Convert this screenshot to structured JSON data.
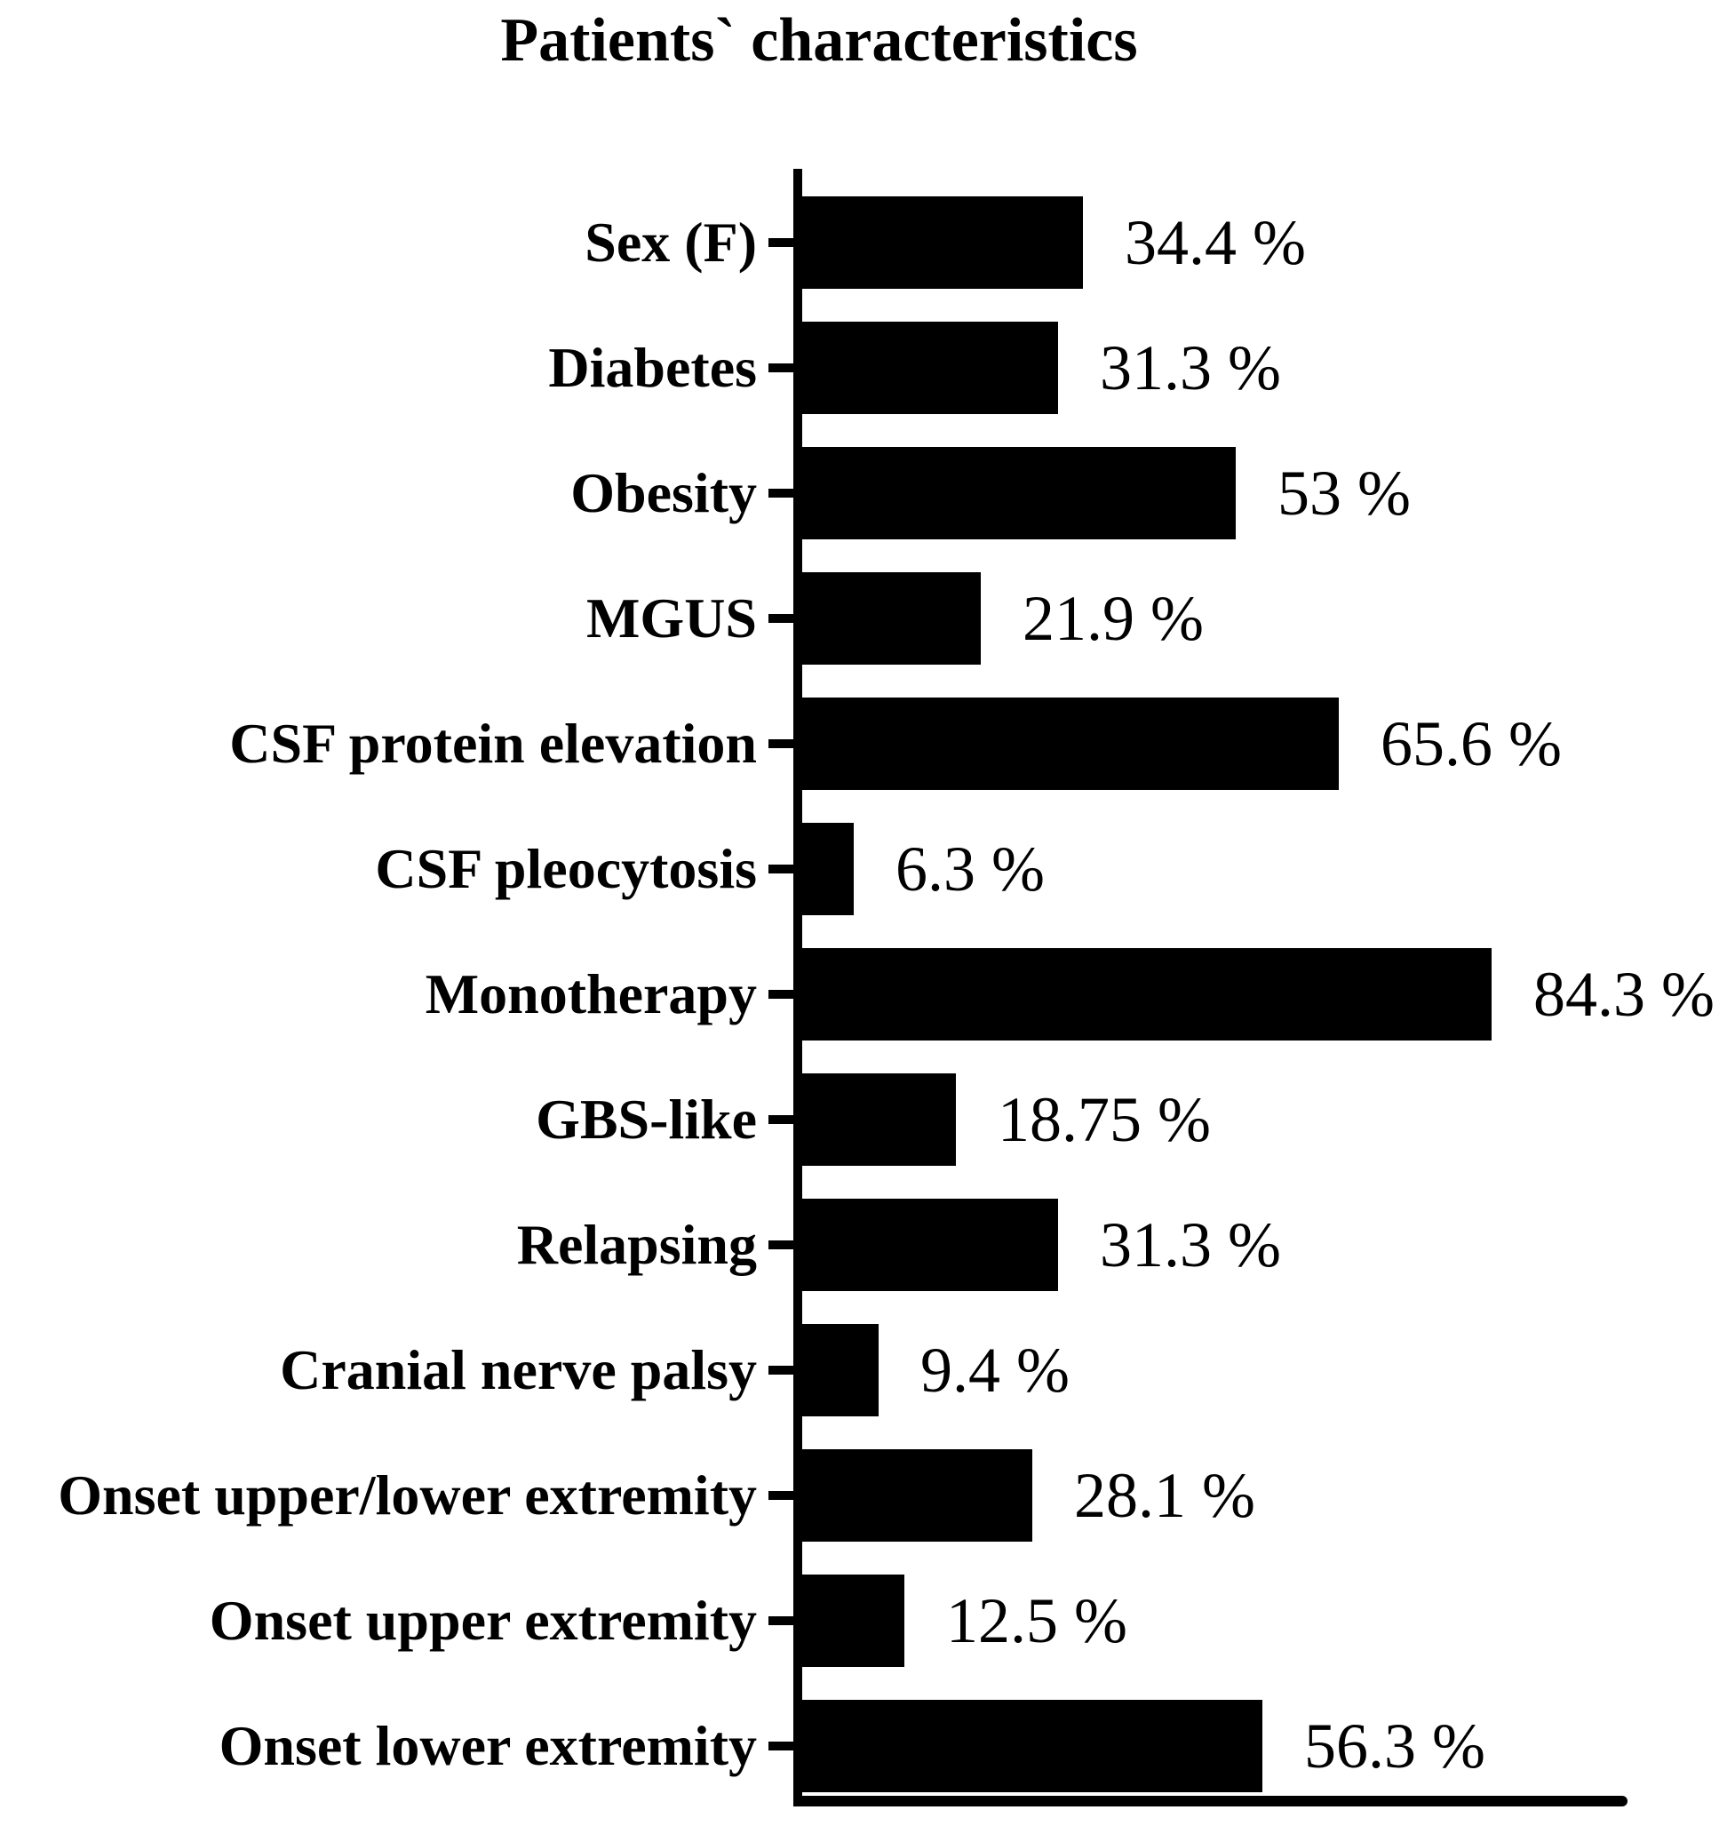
{
  "chart_data": {
    "type": "bar",
    "orientation": "horizontal",
    "title": "Patients` characteristics",
    "categories": [
      "Sex (F)",
      "Diabetes",
      "Obesity",
      "MGUS",
      "CSF protein elevation",
      "CSF pleocytosis",
      "Monotherapy",
      "GBS-like",
      "Relapsing",
      "Cranial nerve palsy",
      "Onset upper/lower extremity",
      "Onset upper extremity",
      "Onset lower extremity"
    ],
    "values": [
      34.4,
      31.3,
      53,
      21.9,
      65.6,
      6.3,
      84.3,
      18.75,
      31.3,
      9.4,
      28.1,
      12.5,
      56.3
    ],
    "value_labels": [
      "34.4 %",
      "31.3 %",
      "53 %",
      "21.9 %",
      "65.6 %",
      "6.3 %",
      "84.3 %",
      "18.75 %",
      "31.3 %",
      "9.4 %",
      "28.1 %",
      "12.5 %",
      "56.3 %"
    ],
    "xlabel": "",
    "ylabel": "",
    "xlim": [
      0,
      100
    ],
    "grid": false,
    "legend": false,
    "bar_color": "#000000",
    "background_color": "#ffffff",
    "text_color": "#000000"
  }
}
